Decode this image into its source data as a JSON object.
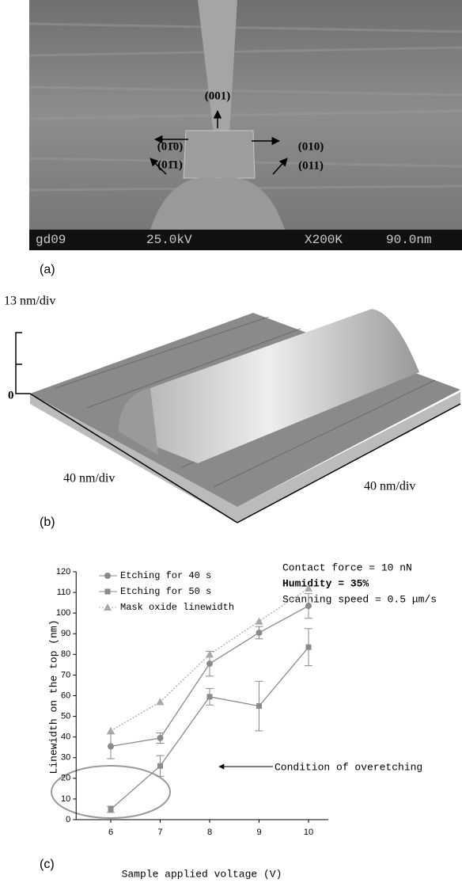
{
  "panel_a": {
    "label": "(a)",
    "annotations": [
      "(001)",
      "(01̄0)",
      "(01̄1)",
      "(010)",
      "(011)"
    ],
    "scale_bar": [
      "gd09",
      "25.0kV",
      "X200K",
      "90.0nm"
    ]
  },
  "panel_b": {
    "label": "(b)",
    "z_axis": "13 nm/div",
    "z_zero": "0",
    "x_axis": "40 nm/div",
    "y_axis": "40 nm/div"
  },
  "chart_data": {
    "type": "line",
    "panel_label": "(c)",
    "x_label": "Sample applied voltage (V)",
    "y_label": "Linewidth on the top (nm)",
    "x": [
      6,
      7,
      8,
      9,
      10
    ],
    "series": [
      {
        "name": "Etching for 40 s",
        "color": "#8a8a8a",
        "marker": "circle",
        "dash": "solid",
        "values": [
          35.5,
          39.5,
          75.5,
          90.5,
          103.5
        ],
        "errors": [
          6,
          2.5,
          6,
          3,
          6
        ]
      },
      {
        "name": "Etching for 50 s",
        "color": "#8a8a8a",
        "marker": "square",
        "dash": "solid",
        "values": [
          5,
          26,
          59.5,
          55,
          83.5
        ],
        "errors": [
          1.5,
          5,
          4,
          12,
          9
        ]
      },
      {
        "name": "Mask oxide linewidth",
        "color": "#a8a8a8",
        "marker": "triangle",
        "dash": "dotted",
        "values": [
          43,
          57,
          80,
          96,
          112
        ]
      }
    ],
    "xlim": [
      5.3,
      10.4
    ],
    "ylim": [
      0,
      120
    ],
    "xticks": [
      6,
      7,
      8,
      9,
      10
    ],
    "yticks": [
      0,
      10,
      20,
      30,
      40,
      50,
      60,
      70,
      80,
      90,
      100,
      110,
      120
    ],
    "conditions": [
      "Contact force = 10 nN",
      "Humidity = 35%",
      "Scanning speed = 0.5 μm/s"
    ],
    "annotation": "Condition of overetching"
  }
}
